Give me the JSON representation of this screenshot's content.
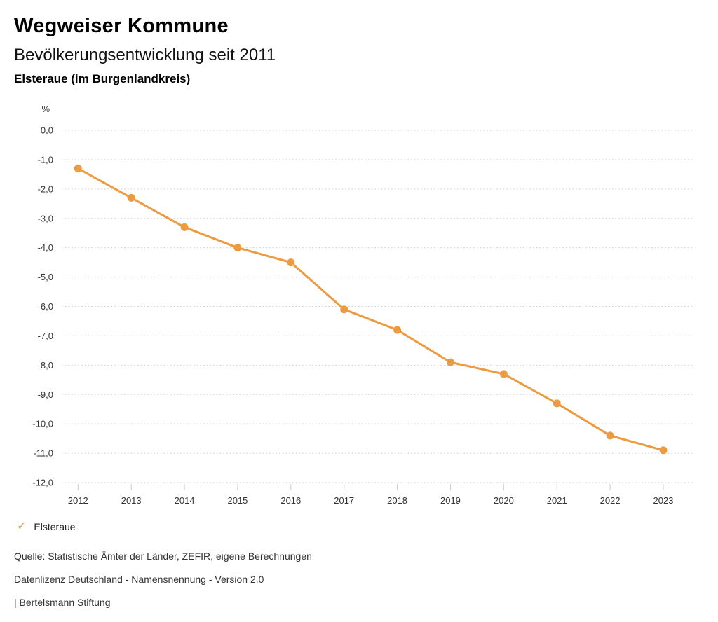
{
  "header": {
    "title": "Wegweiser Kommune",
    "subtitle": "Bevölkerungsentwicklung seit 2011",
    "region": "Elsteraue (im Burgenlandkreis)"
  },
  "legend": {
    "check_icon": "✓",
    "label": "Elsteraue"
  },
  "footer": {
    "source": "Quelle: Statistische Ämter der Länder, ZEFIR, eigene Berechnungen",
    "license": "Datenlizenz Deutschland - Namensnennung - Version 2.0",
    "brand": "| Bertelsmann Stiftung"
  },
  "colors": {
    "series_orange": "#ED9B40",
    "gridline": "#c9c9c9",
    "tick": "#cccccc",
    "axis_text": "#333333"
  },
  "chart_data": {
    "type": "line",
    "title": "Bevölkerungsentwicklung seit 2011",
    "unit_label": "%",
    "x": [
      2012,
      2013,
      2014,
      2015,
      2016,
      2017,
      2018,
      2019,
      2020,
      2021,
      2022,
      2023
    ],
    "series": [
      {
        "name": "Elsteraue",
        "color": "#ED9B40",
        "values": [
          -1.3,
          -2.3,
          -3.3,
          -4.0,
          -4.5,
          -6.1,
          -6.8,
          -7.9,
          -8.3,
          -9.3,
          -10.4,
          -10.9
        ]
      }
    ],
    "ylim": [
      -12.0,
      0.0
    ],
    "ytick_values": [
      0,
      -1,
      -2,
      -3,
      -4,
      -5,
      -6,
      -7,
      -8,
      -9,
      -10,
      -11,
      -12
    ],
    "ytick_labels": [
      "0,0",
      "-1,0",
      "-2,0",
      "-3,0",
      "-4,0",
      "-5,0",
      "-6,0",
      "-7,0",
      "-8,0",
      "-9,0",
      "-10,0",
      "-11,0",
      "-12,0"
    ],
    "grid": "horizontal-dotted",
    "legend_position": "bottom-left"
  }
}
